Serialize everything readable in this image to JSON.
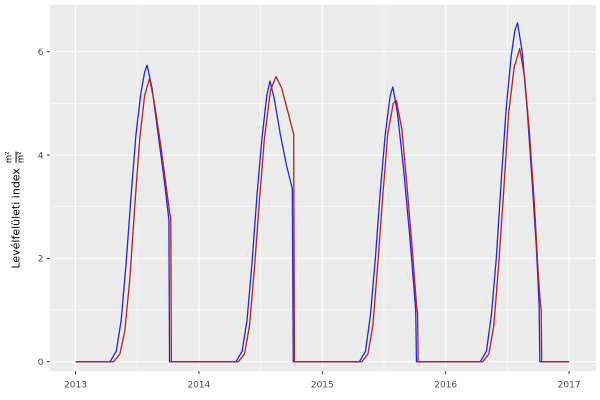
{
  "figure": {
    "background": "#ffffff",
    "panel_background": "#ebebeb",
    "grid_major_color": "#ffffff",
    "grid_minor_color": "#f5f5f5",
    "tick_mark_color": "#333333",
    "tick_label_color": "#4d4d4d",
    "axis_title_color": "#000000"
  },
  "y_axis": {
    "title_text": "Levélfelületi index",
    "unit_numerator": "m²",
    "unit_denominator": "m²",
    "tick_labels": [
      "0",
      "2",
      "4",
      "6"
    ],
    "tick_values": [
      0,
      2,
      4,
      6
    ],
    "minor_values": [
      1,
      3,
      5
    ]
  },
  "x_axis": {
    "tick_labels": [
      "2013",
      "2014",
      "2015",
      "2016",
      "2017"
    ],
    "tick_values": [
      2013,
      2014,
      2015,
      2016,
      2017
    ],
    "minor_values": [
      2013.5,
      2014.5,
      2015.5,
      2016.5
    ]
  },
  "chart_data": {
    "type": "line",
    "title": "",
    "xlabel": "",
    "ylabel": "Levélfelületi index (m²/m²)",
    "x_range": [
      2012.79,
      2017.22
    ],
    "y_range": [
      -0.2,
      6.9
    ],
    "grid": "on",
    "legend": "none",
    "description": "Seasonal leaf-area-index curves for four growing seasons (2013-2016); blue and red model lines rise each spring, peak mid-summer, then drop abruptly to zero in autumn.",
    "peaks": {
      "blue": [
        [
          2013.58,
          5.74
        ],
        [
          2014.58,
          5.43
        ],
        [
          2015.57,
          5.32
        ],
        [
          2016.58,
          6.56
        ]
      ],
      "red": [
        [
          2013.6,
          5.48
        ],
        [
          2014.63,
          5.52
        ],
        [
          2015.6,
          5.06
        ],
        [
          2016.6,
          6.06
        ]
      ]
    },
    "series": [
      {
        "name": "series-blue",
        "color": "#2424dd",
        "points": [
          [
            2013.0,
            0
          ],
          [
            2013.28,
            0
          ],
          [
            2013.33,
            0.2
          ],
          [
            2013.37,
            0.8
          ],
          [
            2013.41,
            1.9
          ],
          [
            2013.45,
            3.2
          ],
          [
            2013.49,
            4.4
          ],
          [
            2013.53,
            5.2
          ],
          [
            2013.56,
            5.6
          ],
          [
            2013.58,
            5.74
          ],
          [
            2013.62,
            5.3
          ],
          [
            2013.67,
            4.4
          ],
          [
            2013.72,
            3.5
          ],
          [
            2013.757,
            2.75
          ],
          [
            2013.762,
            0
          ],
          [
            2014.3,
            0
          ],
          [
            2014.35,
            0.2
          ],
          [
            2014.39,
            0.8
          ],
          [
            2014.43,
            1.9
          ],
          [
            2014.47,
            3.2
          ],
          [
            2014.51,
            4.3
          ],
          [
            2014.55,
            5.15
          ],
          [
            2014.576,
            5.43
          ],
          [
            2014.61,
            5.1
          ],
          [
            2014.66,
            4.4
          ],
          [
            2014.71,
            3.8
          ],
          [
            2014.757,
            3.35
          ],
          [
            2014.765,
            0
          ],
          [
            2015.3,
            0
          ],
          [
            2015.35,
            0.2
          ],
          [
            2015.39,
            0.9
          ],
          [
            2015.43,
            2.0
          ],
          [
            2015.47,
            3.3
          ],
          [
            2015.51,
            4.4
          ],
          [
            2015.55,
            5.15
          ],
          [
            2015.572,
            5.32
          ],
          [
            2015.61,
            4.8
          ],
          [
            2015.66,
            3.7
          ],
          [
            2015.71,
            2.4
          ],
          [
            2015.757,
            1.0
          ],
          [
            2015.763,
            0
          ],
          [
            2016.28,
            0
          ],
          [
            2016.33,
            0.2
          ],
          [
            2016.37,
            0.9
          ],
          [
            2016.41,
            2.0
          ],
          [
            2016.45,
            3.5
          ],
          [
            2016.49,
            4.9
          ],
          [
            2016.53,
            5.9
          ],
          [
            2016.56,
            6.4
          ],
          [
            2016.582,
            6.56
          ],
          [
            2016.62,
            6.0
          ],
          [
            2016.66,
            4.9
          ],
          [
            2016.7,
            3.5
          ],
          [
            2016.735,
            2.2
          ],
          [
            2016.757,
            1.1
          ],
          [
            2016.763,
            0
          ],
          [
            2017.0,
            0
          ]
        ]
      },
      {
        "name": "series-red",
        "color": "#b22222",
        "points": [
          [
            2013.0,
            0
          ],
          [
            2013.31,
            0
          ],
          [
            2013.36,
            0.15
          ],
          [
            2013.4,
            0.6
          ],
          [
            2013.44,
            1.6
          ],
          [
            2013.48,
            3.0
          ],
          [
            2013.52,
            4.3
          ],
          [
            2013.56,
            5.15
          ],
          [
            2013.6,
            5.48
          ],
          [
            2013.64,
            5.0
          ],
          [
            2013.69,
            4.2
          ],
          [
            2013.74,
            3.3
          ],
          [
            2013.765,
            2.85
          ],
          [
            2013.772,
            2.8
          ],
          [
            2013.777,
            0
          ],
          [
            2014.32,
            0
          ],
          [
            2014.37,
            0.15
          ],
          [
            2014.41,
            0.7
          ],
          [
            2014.45,
            1.8
          ],
          [
            2014.49,
            3.1
          ],
          [
            2014.53,
            4.3
          ],
          [
            2014.58,
            5.25
          ],
          [
            2014.625,
            5.52
          ],
          [
            2014.67,
            5.3
          ],
          [
            2014.72,
            4.85
          ],
          [
            2014.768,
            4.4
          ],
          [
            2014.774,
            0
          ],
          [
            2015.32,
            0
          ],
          [
            2015.37,
            0.15
          ],
          [
            2015.41,
            0.7
          ],
          [
            2015.45,
            1.9
          ],
          [
            2015.49,
            3.2
          ],
          [
            2015.53,
            4.4
          ],
          [
            2015.575,
            5.0
          ],
          [
            2015.6,
            5.06
          ],
          [
            2015.645,
            4.5
          ],
          [
            2015.69,
            3.3
          ],
          [
            2015.735,
            2.0
          ],
          [
            2015.765,
            1.05
          ],
          [
            2015.772,
            0.95
          ],
          [
            2015.777,
            0
          ],
          [
            2016.3,
            0
          ],
          [
            2016.35,
            0.15
          ],
          [
            2016.39,
            0.7
          ],
          [
            2016.43,
            1.9
          ],
          [
            2016.47,
            3.3
          ],
          [
            2016.51,
            4.8
          ],
          [
            2016.555,
            5.7
          ],
          [
            2016.6,
            6.06
          ],
          [
            2016.64,
            5.5
          ],
          [
            2016.68,
            4.4
          ],
          [
            2016.72,
            3.0
          ],
          [
            2016.75,
            1.7
          ],
          [
            2016.768,
            1.1
          ],
          [
            2016.774,
            1.0
          ],
          [
            2016.778,
            0
          ],
          [
            2017.0,
            0
          ]
        ]
      }
    ]
  }
}
